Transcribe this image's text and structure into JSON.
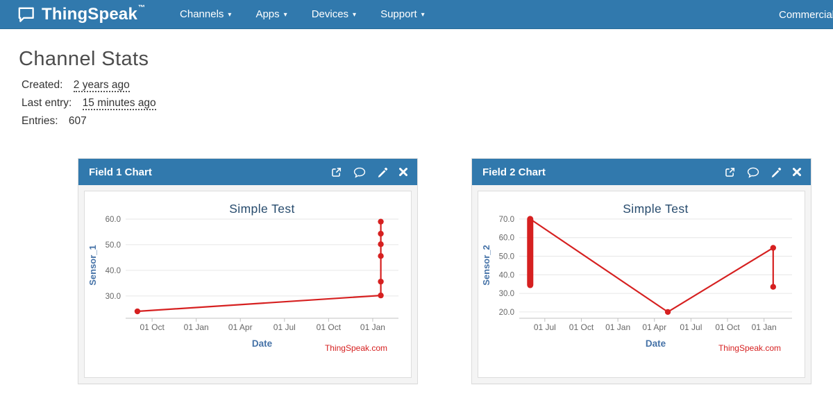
{
  "navbar": {
    "brand": "ThingSpeak",
    "brand_tm": "™",
    "items": [
      {
        "label": "Channels"
      },
      {
        "label": "Apps"
      },
      {
        "label": "Devices"
      },
      {
        "label": "Support"
      }
    ],
    "right_item": {
      "label": "Commercial Use"
    }
  },
  "page": {
    "title": "Channel Stats",
    "stats": [
      {
        "label": "Created:",
        "value": "2 years ago"
      },
      {
        "label": "Last entry:",
        "value": "15 minutes ago"
      },
      {
        "label": "Entries:",
        "value": "607"
      }
    ]
  },
  "panels": [
    {
      "title": "Field 1 Chart"
    },
    {
      "title": "Field 2 Chart"
    }
  ],
  "chart_data": [
    {
      "type": "line",
      "title": "Simple Test",
      "xlabel": "Date",
      "ylabel": "Sensor_1",
      "watermark": "ThingSpeak.com",
      "line_color": "#d62020",
      "x_unit": "months-from-first-tick",
      "x_ticks": [
        {
          "pos": 0,
          "label": "01 Oct"
        },
        {
          "pos": 3,
          "label": "01 Jan"
        },
        {
          "pos": 6,
          "label": "01 Apr"
        },
        {
          "pos": 9,
          "label": "01 Jul"
        },
        {
          "pos": 12,
          "label": "01 Oct"
        },
        {
          "pos": 15,
          "label": "01 Jan"
        }
      ],
      "xlim": [
        -1.8,
        16.75
      ],
      "y_ticks": [
        30,
        40,
        50,
        60
      ],
      "ylim": [
        21.3,
        62.7
      ],
      "points": [
        {
          "x": -1.0,
          "y": 24.0
        },
        {
          "x": 15.55,
          "y": 30.2
        },
        {
          "x": 15.55,
          "y": 35.6
        },
        {
          "x": 15.55,
          "y": 45.6
        },
        {
          "x": 15.55,
          "y": 50.2
        },
        {
          "x": 15.55,
          "y": 54.3
        },
        {
          "x": 15.55,
          "y": 59.0
        }
      ],
      "clusters": []
    },
    {
      "type": "line",
      "title": "Simple Test",
      "xlabel": "Date",
      "ylabel": "Sensor_2",
      "watermark": "ThingSpeak.com",
      "line_color": "#d62020",
      "x_unit": "months-from-first-tick",
      "x_ticks": [
        {
          "pos": 0,
          "label": "01 Jul"
        },
        {
          "pos": 3,
          "label": "01 Oct"
        },
        {
          "pos": 6,
          "label": "01 Jan"
        },
        {
          "pos": 9,
          "label": "01 Apr"
        },
        {
          "pos": 12,
          "label": "01 Jul"
        },
        {
          "pos": 15,
          "label": "01 Oct"
        },
        {
          "pos": 18,
          "label": "01 Jan"
        }
      ],
      "xlim": [
        -2.1,
        20.3
      ],
      "y_ticks": [
        20,
        30,
        40,
        50,
        60,
        70
      ],
      "ylim": [
        16.6,
        73.7
      ],
      "points": [
        {
          "x": -1.2,
          "y": 70.0
        },
        {
          "x": 10.1,
          "y": 20.0
        },
        {
          "x": 18.75,
          "y": 54.5
        },
        {
          "x": 18.75,
          "y": 33.5
        }
      ],
      "clusters": [
        {
          "x": -1.2,
          "y_min": 34.5,
          "y_max": 70.0
        }
      ]
    }
  ],
  "colors": {
    "navbar_bg": "#3179ad",
    "panel_header_bg": "#3179ad",
    "series_red": "#d62020",
    "axis_label_blue": "#4572a7",
    "chart_title_blue": "#274b6d",
    "tick_text": "#666666",
    "gridline": "#e6e6e6"
  }
}
